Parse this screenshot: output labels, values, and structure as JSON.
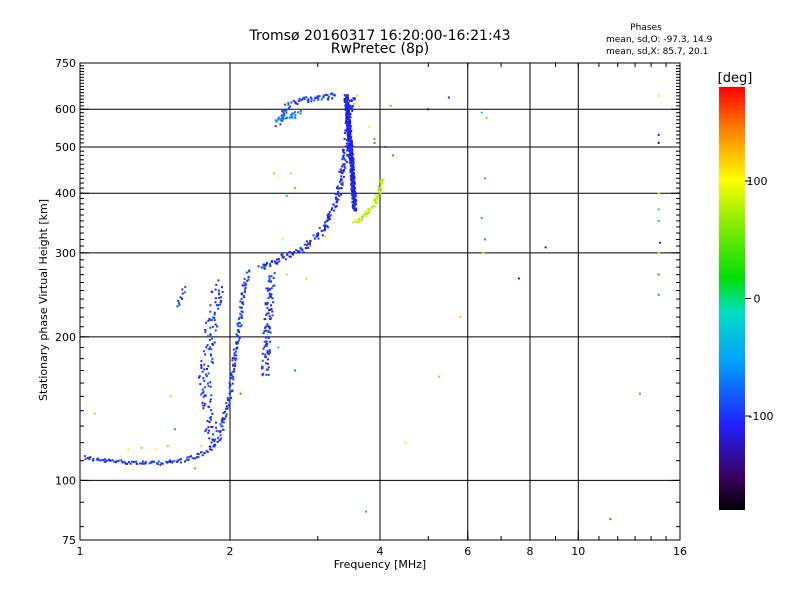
{
  "chart_data": {
    "type": "scatter",
    "title": "Tromsø 20160317 16:20:00-16:21:43",
    "subtitle": "RwPretec (8p)",
    "stats": {
      "heading": "Phases",
      "line_o": "mean, sd,O: -97.3, 14.9",
      "line_x": "mean, sd,X:  85.7, 20.1"
    },
    "xlabel": "Frequency [MHz]",
    "ylabel": "Stationary phase Virtual Height [km]",
    "x_scale": "log2",
    "y_scale": "log",
    "xlim": [
      1,
      16
    ],
    "ylim": [
      75,
      750
    ],
    "x_ticks": [
      {
        "v": 1,
        "label": "1"
      },
      {
        "v": 2,
        "label": "2"
      },
      {
        "v": 4,
        "label": "4"
      },
      {
        "v": 6,
        "label": "6"
      },
      {
        "v": 8,
        "label": "8"
      },
      {
        "v": 10,
        "label": "10"
      },
      {
        "v": 16,
        "label": "16"
      }
    ],
    "x_grid": [
      2,
      4,
      6,
      8,
      10
    ],
    "y_ticks": [
      {
        "v": 75,
        "label": "75"
      },
      {
        "v": 100,
        "label": "100"
      },
      {
        "v": 200,
        "label": "200"
      },
      {
        "v": 300,
        "label": "300"
      },
      {
        "v": 400,
        "label": "400"
      },
      {
        "v": 500,
        "label": "500"
      },
      {
        "v": 600,
        "label": "600"
      },
      {
        "v": 750,
        "label": "750"
      }
    ],
    "y_grid": [
      100,
      200,
      300,
      400,
      500,
      600
    ],
    "colorbar": {
      "label": "[deg]",
      "range": [
        -180,
        180
      ],
      "ticks": [
        {
          "v": 100,
          "label": "100"
        },
        {
          "v": 0,
          "label": "0"
        },
        {
          "v": -100,
          "label": "-100"
        }
      ]
    },
    "traces": [
      {
        "name": "",
        "phase": -100,
        "density": 3,
        "jitter": 2,
        "points": [
          [
            1.02,
            112
          ],
          [
            1.05,
            111
          ],
          [
            1.1,
            110
          ],
          [
            1.2,
            109.5
          ],
          [
            1.3,
            109
          ],
          [
            1.4,
            108.5
          ],
          [
            1.5,
            109
          ],
          [
            1.6,
            110
          ],
          [
            1.7,
            112
          ],
          [
            1.8,
            115
          ],
          [
            1.9,
            122
          ],
          [
            1.95,
            135
          ],
          [
            2.0,
            150
          ],
          [
            2.02,
            165
          ],
          [
            2.05,
            185
          ],
          [
            2.08,
            205
          ],
          [
            2.1,
            220
          ],
          [
            2.12,
            245
          ],
          [
            2.15,
            262
          ],
          [
            2.2,
            275
          ]
        ]
      },
      {
        "name": "",
        "phase": -100,
        "density": 3,
        "jitter": 6,
        "points": [
          [
            1.85,
            120
          ],
          [
            1.82,
            135
          ],
          [
            1.8,
            150
          ],
          [
            1.78,
            165
          ],
          [
            1.8,
            180
          ],
          [
            1.82,
            200
          ],
          [
            1.85,
            220
          ],
          [
            1.88,
            240
          ],
          [
            1.9,
            260
          ]
        ]
      },
      {
        "name": "",
        "phase": -105,
        "density": 4,
        "jitter": 3,
        "points": [
          [
            2.3,
            280
          ],
          [
            2.4,
            285
          ],
          [
            2.6,
            295
          ],
          [
            2.8,
            305
          ],
          [
            3.0,
            325
          ],
          [
            3.1,
            340
          ],
          [
            3.2,
            365
          ],
          [
            3.3,
            400
          ],
          [
            3.38,
            450
          ],
          [
            3.42,
            500
          ],
          [
            3.45,
            560
          ],
          [
            3.5,
            610
          ],
          [
            3.52,
            640
          ]
        ]
      },
      {
        "name": "",
        "phase": -110,
        "density": 14,
        "jitter": 2,
        "points": [
          [
            3.42,
            640
          ],
          [
            3.44,
            600
          ],
          [
            3.46,
            560
          ],
          [
            3.48,
            520
          ],
          [
            3.5,
            480
          ],
          [
            3.52,
            440
          ],
          [
            3.54,
            400
          ],
          [
            3.56,
            370
          ]
        ]
      },
      {
        "name": "",
        "phase": 80,
        "density": 4,
        "jitter": 2,
        "points": [
          [
            3.55,
            350
          ],
          [
            3.6,
            348
          ],
          [
            3.7,
            355
          ],
          [
            3.8,
            368
          ],
          [
            3.9,
            380
          ],
          [
            3.95,
            395
          ],
          [
            4.0,
            410
          ],
          [
            4.05,
            430
          ]
        ]
      },
      {
        "name": "",
        "phase": -95,
        "density": 4,
        "jitter": 3,
        "points": [
          [
            2.5,
            555
          ],
          [
            2.55,
            585
          ],
          [
            2.62,
            610
          ],
          [
            2.7,
            620
          ],
          [
            2.8,
            625
          ],
          [
            2.9,
            630
          ],
          [
            3.0,
            635
          ],
          [
            3.2,
            640
          ],
          [
            3.3,
            640
          ]
        ]
      },
      {
        "name": "",
        "phase": -70,
        "density": 5,
        "jitter": 3,
        "points": [
          [
            2.5,
            570
          ],
          [
            2.6,
            580
          ],
          [
            2.7,
            580
          ],
          [
            2.75,
            590
          ]
        ]
      },
      {
        "name": "",
        "phase": -100,
        "density": 4,
        "jitter": 4,
        "points": [
          [
            2.35,
            165
          ],
          [
            2.36,
            185
          ],
          [
            2.38,
            210
          ],
          [
            2.4,
            240
          ],
          [
            2.42,
            270
          ]
        ]
      },
      {
        "name": "",
        "phase": -100,
        "density": 2,
        "jitter": 2,
        "points": [
          [
            1.57,
            230
          ],
          [
            1.6,
            240
          ],
          [
            1.62,
            255
          ]
        ]
      }
    ],
    "scatter": [
      [
        1.07,
        138,
        120
      ],
      [
        1.25,
        116,
        90
      ],
      [
        1.33,
        117,
        130
      ],
      [
        1.42,
        116,
        100
      ],
      [
        1.5,
        118,
        60
      ],
      [
        1.52,
        150,
        120
      ],
      [
        1.55,
        128,
        -60
      ],
      [
        1.7,
        106,
        40
      ],
      [
        1.75,
        118,
        110
      ],
      [
        2.1,
        152,
        160
      ],
      [
        2.55,
        320,
        110
      ],
      [
        2.6,
        270,
        80
      ],
      [
        2.5,
        430,
        100
      ],
      [
        2.65,
        440,
        70
      ],
      [
        2.7,
        410,
        140
      ],
      [
        2.6,
        395,
        -20
      ],
      [
        2.45,
        440,
        130
      ],
      [
        2.85,
        265,
        120
      ],
      [
        2.5,
        190,
        40
      ],
      [
        2.7,
        170,
        -70
      ],
      [
        2.9,
        310,
        140
      ],
      [
        3.1,
        325,
        110
      ],
      [
        3.6,
        640,
        120
      ],
      [
        3.55,
        615,
        90
      ],
      [
        3.8,
        550,
        100
      ],
      [
        3.9,
        520,
        150
      ],
      [
        3.9,
        510,
        -60
      ],
      [
        4.1,
        500,
        -90
      ],
      [
        4.2,
        610,
        140
      ],
      [
        4.25,
        480,
        160
      ],
      [
        4.5,
        120,
        110
      ],
      [
        5.0,
        600,
        -120
      ],
      [
        5.25,
        165,
        130
      ],
      [
        5.5,
        635,
        -100
      ],
      [
        5.8,
        220,
        120
      ],
      [
        6.4,
        590,
        -20
      ],
      [
        6.5,
        430,
        150
      ],
      [
        6.4,
        355,
        -40
      ],
      [
        6.5,
        320,
        -60
      ],
      [
        6.45,
        300,
        90
      ],
      [
        6.55,
        575,
        60
      ],
      [
        7.6,
        265,
        -120
      ],
      [
        8.6,
        308,
        -130
      ],
      [
        3.75,
        86,
        -40
      ],
      [
        13.3,
        152,
        150
      ],
      [
        11.6,
        83,
        160
      ],
      [
        14.5,
        640,
        110
      ],
      [
        14.5,
        530,
        -110
      ],
      [
        14.5,
        510,
        -140
      ],
      [
        14.5,
        400,
        100
      ],
      [
        14.5,
        370,
        -20
      ],
      [
        14.5,
        350,
        20
      ],
      [
        14.5,
        300,
        110
      ],
      [
        14.5,
        270,
        160
      ],
      [
        14.5,
        245,
        -60
      ],
      [
        14.6,
        315,
        -110
      ]
    ]
  }
}
